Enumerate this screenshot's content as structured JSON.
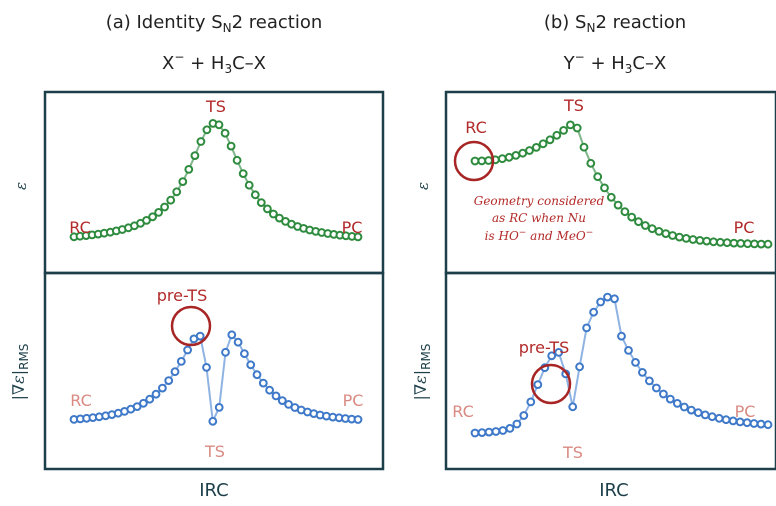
{
  "colors": {
    "frame": "#1d3f4a",
    "energy_marker": "#2e8b3e",
    "energy_line": "#7fb58a",
    "grad_marker": "#3e78c8",
    "grad_line": "#8fb3e3",
    "label_dark_red": "#b22a2a",
    "label_light_red": "#d98a82"
  },
  "panels": [
    {
      "title_prefix": "(a) Identity S",
      "title_sub": "N",
      "title_suffix": "2 reaction",
      "eq_left": "X",
      "eq_charge": "−",
      "eq_middle": " + H",
      "eq_sub": "3",
      "eq_right": "C–X",
      "y_label_top": "ε",
      "y_label_bottom": "|∇ε|",
      "y_label_bottom_sub": "RMS",
      "x_label": "IRC",
      "energy_labels": {
        "rc": "RC",
        "pc": "PC",
        "ts": "TS"
      },
      "grad_labels": {
        "rc": "RC",
        "pc": "PC",
        "ts": "TS",
        "pre_ts": "pre-TS"
      }
    },
    {
      "title_prefix": "(b) S",
      "title_sub": "N",
      "title_suffix": "2 reaction",
      "eq_left": "Y",
      "eq_charge": "−",
      "eq_middle": " + H",
      "eq_sub": "3",
      "eq_right": "C–X",
      "y_label_top": "ε",
      "y_label_bottom": "|∇ε|",
      "y_label_bottom_sub": "RMS",
      "x_label": "IRC",
      "energy_labels": {
        "rc": "RC",
        "pc": "PC",
        "ts": "TS"
      },
      "grad_labels": {
        "rc": "RC",
        "pc": "PC",
        "ts": "TS",
        "pre_ts": "pre-TS"
      },
      "note_lines": [
        "Geometry considered",
        "as RC when Nu",
        "is HO",
        " and MeO"
      ],
      "note_charge": "−"
    }
  ]
}
